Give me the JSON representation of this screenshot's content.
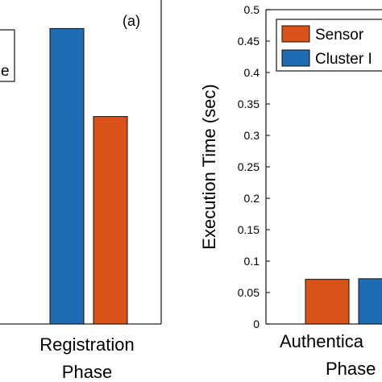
{
  "chart_data": [
    {
      "panel": "(a)",
      "type": "bar",
      "categories": [
        "Registration\nPhase"
      ],
      "series": [
        {
          "color": "#1f6cb4",
          "values": [
            0.47
          ]
        },
        {
          "color": "#d95319",
          "values": [
            0.33
          ]
        }
      ],
      "ylim": [
        0,
        0.5
      ],
      "legend": {
        "position": "top-left",
        "visible_text": [
          "e"
        ]
      }
    },
    {
      "panel": "",
      "type": "bar",
      "categories": [
        "Authentica\nPhase"
      ],
      "series": [
        {
          "name": "Sensor",
          "color": "#d95319",
          "values": [
            0.071
          ]
        },
        {
          "name": "Cluster I",
          "color": "#1f6cb4",
          "values": [
            0.072
          ]
        }
      ],
      "ylabel": "Execution Time (sec)",
      "ylim": [
        0,
        0.5
      ],
      "yticks": [
        "0",
        "0.05",
        "0.1",
        "0.15",
        "0.2",
        "0.25",
        "0.3",
        "0.35",
        "0.4",
        "0.45",
        "0.5"
      ],
      "legend": {
        "position": "top-right"
      }
    }
  ]
}
